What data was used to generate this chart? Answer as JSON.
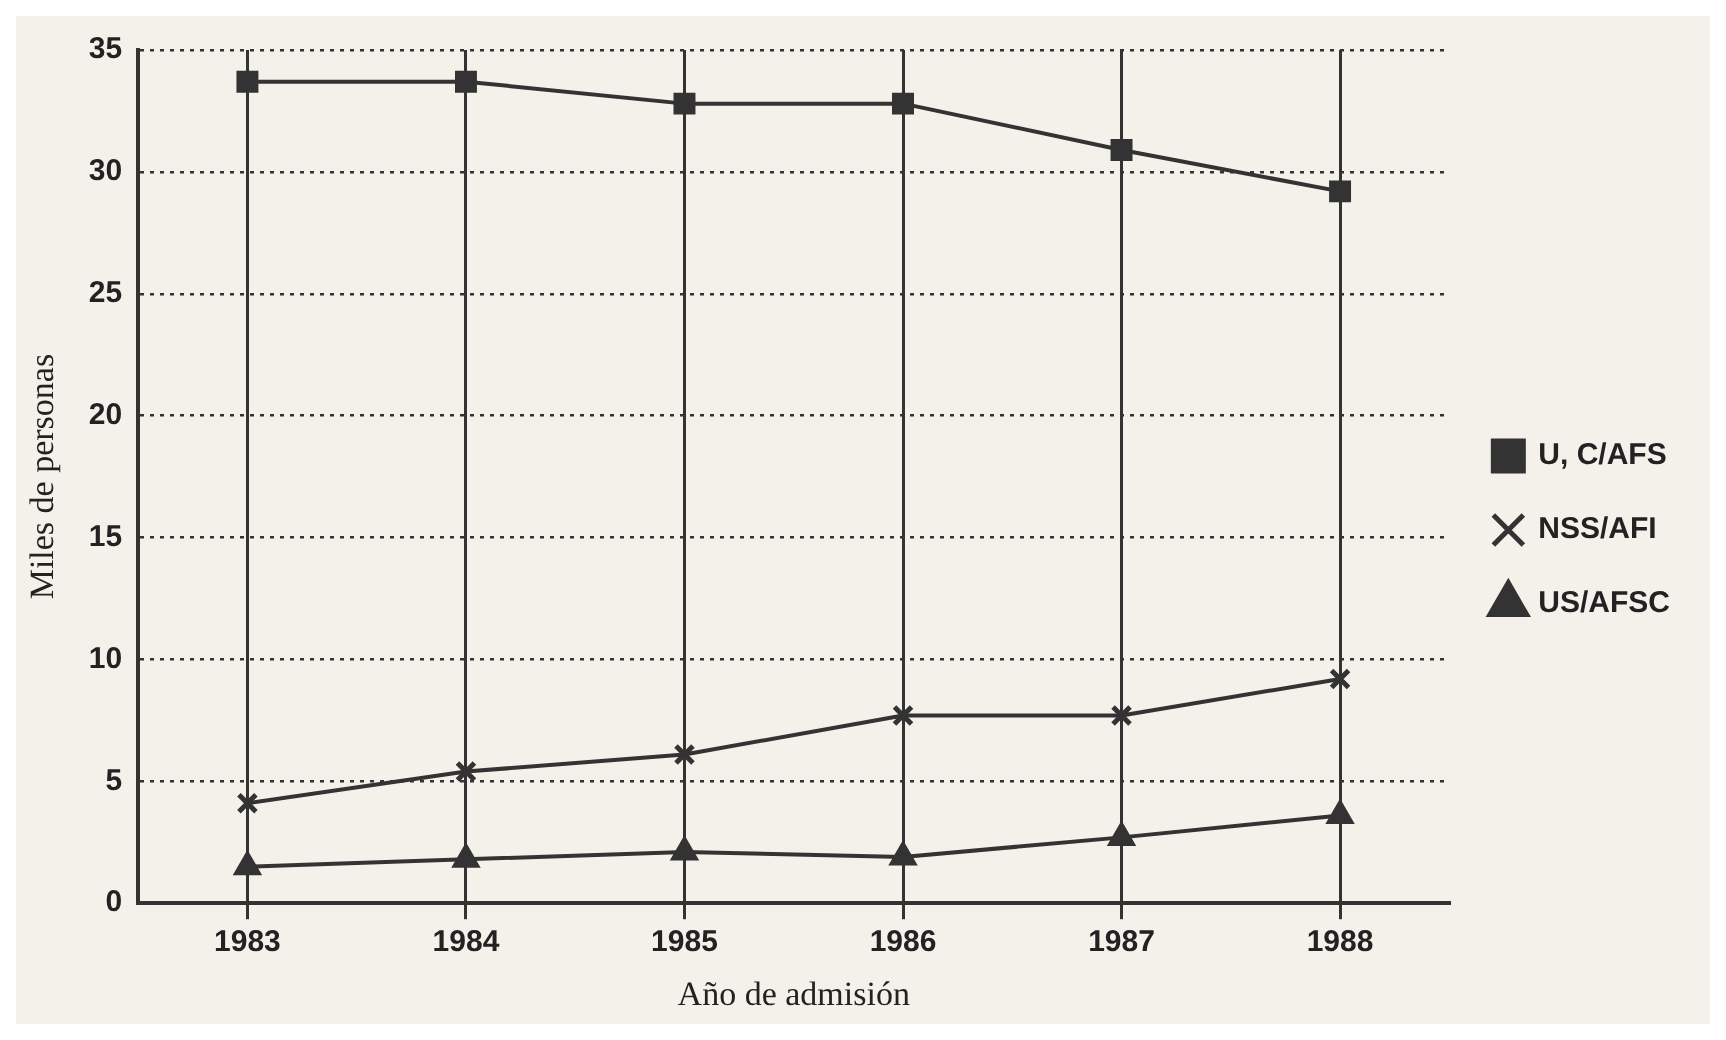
{
  "chart_data": {
    "type": "line",
    "xlabel": "Año de admisión",
    "ylabel": "Miles de personas",
    "categories": [
      "1983",
      "1984",
      "1985",
      "1986",
      "1987",
      "1988"
    ],
    "series": [
      {
        "name": "U, C/AFS",
        "color": "#333333",
        "marker": "square",
        "values": [
          33.7,
          33.7,
          32.8,
          32.8,
          30.9,
          29.2
        ]
      },
      {
        "name": "NSS/AFI",
        "color": "#333333",
        "marker": "cross",
        "values": [
          4.1,
          5.4,
          6.1,
          7.7,
          7.7,
          9.2
        ]
      },
      {
        "name": "US/AFSC",
        "color": "#333333",
        "marker": "triangle",
        "values": [
          1.5,
          1.8,
          2.1,
          1.9,
          2.7,
          3.6
        ]
      }
    ],
    "ylim": [
      0,
      35
    ],
    "yticks": [
      0,
      5,
      10,
      15,
      20,
      25,
      30,
      35
    ],
    "grid": true,
    "legend": "right",
    "line_style": "solid"
  }
}
